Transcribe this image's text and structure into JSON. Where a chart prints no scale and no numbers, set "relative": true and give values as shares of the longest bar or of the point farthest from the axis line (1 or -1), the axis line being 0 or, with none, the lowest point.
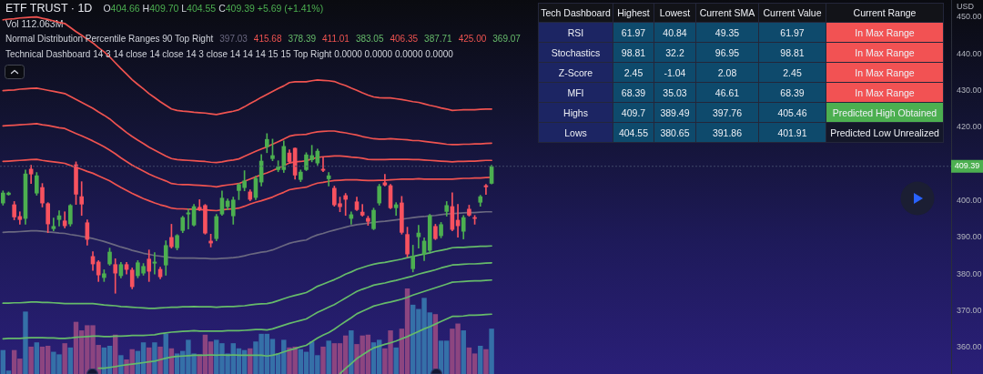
{
  "chart_data": [
    {
      "type": "candlestick",
      "title": "ETF TRUST · 1D",
      "ylabel": "USD",
      "categories": [
        null,
        null,
        null,
        null,
        null,
        null,
        null,
        null,
        null,
        null,
        null,
        null,
        null,
        null,
        null,
        null,
        null,
        null,
        null,
        null,
        null,
        null,
        null,
        null,
        null,
        null,
        null,
        null,
        null,
        null,
        null,
        null,
        null,
        null,
        null,
        null,
        null,
        null,
        null,
        null,
        null,
        null,
        null,
        null,
        null,
        null,
        null,
        null,
        null,
        null,
        null,
        null,
        null,
        null,
        null,
        null,
        null,
        null,
        null,
        null,
        null,
        null,
        null,
        null,
        null,
        null,
        null,
        null,
        null,
        null,
        null,
        null,
        null,
        null,
        null,
        null,
        null,
        null,
        null,
        null,
        null,
        null,
        null,
        null,
        null,
        null,
        null,
        null
      ],
      "ohlc": [
        [
          399.3,
          402.7,
          398.8,
          402.2
        ],
        [
          401.6,
          402.4,
          401.5,
          402.2
        ],
        [
          399.0,
          399.8,
          394.8,
          395.5
        ],
        [
          395.8,
          397.0,
          393.6,
          394.8
        ],
        [
          395.1,
          408.4,
          393.6,
          407.4
        ],
        [
          408.7,
          409.7,
          404.7,
          407.2
        ],
        [
          402.0,
          407.7,
          401.5,
          406.9
        ],
        [
          403.7,
          404.7,
          398.3,
          399.3
        ],
        [
          399.3,
          399.5,
          391.3,
          393.6
        ],
        [
          392.3,
          395.3,
          391.8,
          393.1
        ],
        [
          394.8,
          397.3,
          393.1,
          396.0
        ],
        [
          394.6,
          397.0,
          392.6,
          393.1
        ],
        [
          393.6,
          399.0,
          393.1,
          398.8
        ],
        [
          409.9,
          410.6,
          399.0,
          401.7
        ],
        [
          401.2,
          405.2,
          396.0,
          399.0
        ],
        [
          394.1,
          394.8,
          387.9,
          389.4
        ],
        [
          384.9,
          386.1,
          381.0,
          382.7
        ],
        [
          383.4,
          383.7,
          378.0,
          379.7
        ],
        [
          379.0,
          381.2,
          378.0,
          380.2
        ],
        [
          382.7,
          387.1,
          382.4,
          386.1
        ],
        [
          382.7,
          384.2,
          374.8,
          380.2
        ],
        [
          379.5,
          383.2,
          379.0,
          382.7
        ],
        [
          382.7,
          383.2,
          380.0,
          381.2
        ],
        [
          381.2,
          381.7,
          376.0,
          376.5
        ],
        [
          379.5,
          383.7,
          379.0,
          383.2
        ],
        [
          380.2,
          382.9,
          379.7,
          382.2
        ],
        [
          384.2,
          386.6,
          378.0,
          380.7
        ],
        [
          382.9,
          385.9,
          380.0,
          383.4
        ],
        [
          381.4,
          381.9,
          378.7,
          379.2
        ],
        [
          382.4,
          389.1,
          379.7,
          387.9
        ],
        [
          390.1,
          393.6,
          387.1,
          387.4
        ],
        [
          387.1,
          390.8,
          386.6,
          390.6
        ],
        [
          391.8,
          395.8,
          391.3,
          395.5
        ],
        [
          396.3,
          397.8,
          392.3,
          396.8
        ],
        [
          393.3,
          399.0,
          393.1,
          398.5
        ],
        [
          398.3,
          400.3,
          397.3,
          397.5
        ],
        [
          398.8,
          399.0,
          390.9,
          391.1
        ],
        [
          389.1,
          390.9,
          387.4,
          388.4
        ],
        [
          389.6,
          396.3,
          389.1,
          395.8
        ],
        [
          396.3,
          402.7,
          396.0,
          400.8
        ],
        [
          398.3,
          400.5,
          397.5,
          400.0
        ],
        [
          395.8,
          401.0,
          393.6,
          400.3
        ],
        [
          402.7,
          404.7,
          400.3,
          404.5
        ],
        [
          403.5,
          408.2,
          402.7,
          405.5
        ],
        [
          402.5,
          403.0,
          400.0,
          400.3
        ],
        [
          400.8,
          406.7,
          400.3,
          406.2
        ],
        [
          405.0,
          412.6,
          404.0,
          410.9
        ],
        [
          414.6,
          418.3,
          413.1,
          416.8
        ],
        [
          411.4,
          416.8,
          410.9,
          412.4
        ],
        [
          408.4,
          410.9,
          407.9,
          409.4
        ],
        [
          408.4,
          416.3,
          407.7,
          414.9
        ],
        [
          413.1,
          413.9,
          410.2,
          410.6
        ],
        [
          414.4,
          414.4,
          405.9,
          406.9
        ],
        [
          405.7,
          408.4,
          405.2,
          407.9
        ],
        [
          408.4,
          413.1,
          408.2,
          412.6
        ],
        [
          411.1,
          415.1,
          410.6,
          412.4
        ],
        [
          410.2,
          414.1,
          409.7,
          413.6
        ],
        [
          408.7,
          411.9,
          407.9,
          408.2
        ],
        [
          405.9,
          407.7,
          404.0,
          406.9
        ],
        [
          403.5,
          404.0,
          398.5,
          398.8
        ],
        [
          399.3,
          401.0,
          397.0,
          398.3
        ],
        [
          401.5,
          402.0,
          396.0,
          400.3
        ],
        [
          395.1,
          397.0,
          393.6,
          396.3
        ],
        [
          399.8,
          401.0,
          397.3,
          397.5
        ],
        [
          397.0,
          399.0,
          395.8,
          396.0
        ],
        [
          395.3,
          395.8,
          393.3,
          394.3
        ],
        [
          392.3,
          398.0,
          392.1,
          397.5
        ],
        [
          399.3,
          404.5,
          398.8,
          404.0
        ],
        [
          405.0,
          407.2,
          404.0,
          404.2
        ],
        [
          404.2,
          404.5,
          397.8,
          398.0
        ],
        [
          398.0,
          399.5,
          396.0,
          399.0
        ],
        [
          399.5,
          401.2,
          390.9,
          391.3
        ],
        [
          390.9,
          392.8,
          384.7,
          385.4
        ],
        [
          381.4,
          387.9,
          380.6,
          384.9
        ],
        [
          390.1,
          393.3,
          387.1,
          391.3
        ],
        [
          385.4,
          389.9,
          383.7,
          389.1
        ],
        [
          386.4,
          396.3,
          386.1,
          396.0
        ],
        [
          393.1,
          393.6,
          389.4,
          389.6
        ],
        [
          390.4,
          394.1,
          389.9,
          393.6
        ],
        [
          397.0,
          399.8,
          395.8,
          398.8
        ],
        [
          398.5,
          402.2,
          391.8,
          392.1
        ],
        [
          394.8,
          399.0,
          390.1,
          393.1
        ],
        [
          391.6,
          396.0,
          389.6,
          395.5
        ],
        [
          397.8,
          398.8,
          395.8,
          396.0
        ],
        [
          395.5,
          396.0,
          393.6,
          395.1
        ],
        [
          399.5,
          401.5,
          398.5,
          401.2
        ],
        [
          404.2,
          404.5,
          401.7,
          403.7
        ],
        [
          404.66,
          409.7,
          404.55,
          409.39
        ]
      ],
      "colors": [
        "#4caf50",
        "#4caf50",
        "#f7525f",
        "#f7525f",
        "#4caf50",
        "#f7525f",
        "#4caf50",
        "#f7525f",
        "#f7525f",
        "#4caf50",
        "#4caf50",
        "#f7525f",
        "#4caf50",
        "#f7525f",
        "#f7525f",
        "#f7525f",
        "#f7525f",
        "#f7525f",
        "#4caf50",
        "#4caf50",
        "#f7525f",
        "#4caf50",
        "#f7525f",
        "#f7525f",
        "#4caf50",
        "#4caf50",
        "#f7525f",
        "#4caf50",
        "#f7525f",
        "#4caf50",
        "#f7525f",
        "#4caf50",
        "#4caf50",
        "#4caf50",
        "#4caf50",
        "#f7525f",
        "#f7525f",
        "#f7525f",
        "#4caf50",
        "#4caf50",
        "#4caf50",
        "#4caf50",
        "#4caf50",
        "#4caf50",
        "#f7525f",
        "#4caf50",
        "#4caf50",
        "#4caf50",
        "#4caf50",
        "#4caf50",
        "#4caf50",
        "#f7525f",
        "#f7525f",
        "#4caf50",
        "#4caf50",
        "#4caf50",
        "#4caf50",
        "#f7525f",
        "#4caf50",
        "#f7525f",
        "#f7525f",
        "#f7525f",
        "#4caf50",
        "#f7525f",
        "#f7525f",
        "#f7525f",
        "#4caf50",
        "#4caf50",
        "#f7525f",
        "#f7525f",
        "#4caf50",
        "#f7525f",
        "#f7525f",
        "#4caf50",
        "#4caf50",
        "#4caf50",
        "#4caf50",
        "#f7525f",
        "#4caf50",
        "#4caf50",
        "#f7525f",
        "#f7525f",
        "#4caf50",
        "#f7525f",
        "#f7525f",
        "#4caf50",
        "#f7525f",
        "#4caf50"
      ],
      "series": [
        {
          "type": "line",
          "color": "#6a6880",
          "values": [
            391.4,
            391.5,
            391.5,
            391.6,
            391.7,
            391.8,
            391.8,
            391.7,
            391.5,
            391.4,
            391.2,
            391.1,
            390.8,
            390.6,
            390.3,
            390.0,
            389.7,
            389.3,
            388.9,
            388.4,
            387.9,
            387.4,
            387.0,
            386.5,
            386.1,
            385.7,
            385.4,
            385.1,
            384.9,
            384.7,
            384.5,
            384.4,
            384.4,
            384.4,
            384.4,
            384.3,
            384.3,
            384.2,
            384.2,
            384.3,
            384.4,
            384.5,
            384.7,
            385.0,
            385.4,
            385.7,
            386.0,
            386.2,
            386.6,
            387.2,
            387.8,
            388.4,
            388.8,
            389.1,
            389.3,
            390.1,
            390.7,
            391.1,
            391.6,
            392.0,
            392.4,
            392.8,
            393.2,
            393.5,
            393.7,
            393.9,
            394.1,
            394.3,
            394.4,
            394.6,
            394.8,
            395.0,
            395.2,
            395.4,
            395.6,
            395.7,
            395.9,
            396.0,
            396.2,
            396.4,
            396.5,
            396.6,
            396.7,
            396.8,
            396.8,
            396.9,
            397.0,
            397.0
          ]
        },
        {
          "type": "line",
          "color": "#ef5350",
          "values": [
            430.0,
            430.1,
            430.2,
            430.4,
            430.5,
            430.6,
            430.7,
            430.4,
            430.1,
            429.8,
            429.5,
            429.2,
            428.4,
            427.6,
            426.8,
            426.0,
            425.2,
            424.2,
            423.3,
            422.3,
            421.0,
            419.8,
            418.6,
            417.5,
            416.5,
            415.6,
            414.6,
            413.8,
            413.0,
            412.2,
            411.5,
            411.2,
            411.1,
            411.0,
            410.9,
            410.8,
            410.7,
            410.5,
            410.4,
            410.6,
            410.9,
            411.1,
            411.4,
            412.1,
            412.8,
            413.5,
            414.1,
            414.7,
            415.4,
            416.1,
            416.8,
            417.6,
            417.9,
            418.0,
            418.1,
            418.5,
            418.8,
            418.9,
            419.0,
            419.0,
            418.7,
            418.5,
            418.2,
            417.9,
            417.5,
            417.2,
            416.9,
            416.8,
            416.8,
            416.9,
            416.8,
            416.7,
            416.6,
            416.4,
            416.4,
            416.2,
            416.0,
            415.8,
            415.6,
            415.4,
            415.3,
            415.3,
            415.4,
            415.4,
            415.5,
            415.5,
            415.6,
            415.7
          ]
        },
        {
          "type": "line",
          "color": "#66bb6a",
          "values": [
            null,
            null,
            null,
            null,
            null,
            null,
            null,
            null,
            null,
            null,
            null,
            null,
            null,
            null,
            null,
            null,
            null,
            354.4,
            354.4,
            354.6,
            354.8,
            355.1,
            355.3,
            355.5,
            355.7,
            355.9,
            356.1,
            356.3,
            356.7,
            357.1,
            357.4,
            357.6,
            357.7,
            357.8,
            357.9,
            357.9,
            357.9,
            358.0,
            357.9,
            358.0,
            357.9,
            358.0,
            357.9,
            357.9,
            357.9,
            357.9,
            357.9,
            357.7,
            357.9,
            358.3,
            358.8,
            359.3,
            359.7,
            360.2,
            360.6,
            361.6,
            362.6,
            363.4,
            364.1,
            365.0,
            366.1,
            367.1,
            368.1,
            369.2,
            369.9,
            370.6,
            371.3,
            371.7,
            372.1,
            372.4,
            372.8,
            373.2,
            373.7,
            374.3,
            374.8,
            375.3,
            375.8,
            376.3,
            376.8,
            377.3,
            377.8,
            377.9,
            378.0,
            378.1,
            378.2,
            378.2,
            378.3,
            378.4
          ]
        },
        {
          "type": "line",
          "color": "#ef5350",
          "values": [
            420.4,
            420.5,
            420.6,
            420.7,
            420.8,
            420.9,
            421.0,
            420.7,
            420.5,
            420.2,
            419.9,
            419.7,
            419.0,
            418.3,
            417.7,
            417.0,
            416.3,
            415.5,
            414.7,
            413.8,
            412.8,
            411.7,
            410.7,
            409.7,
            408.9,
            408.1,
            407.3,
            406.6,
            406.0,
            405.4,
            404.7,
            404.5,
            404.4,
            404.4,
            404.3,
            404.2,
            404.1,
            404.0,
            403.8,
            404.1,
            404.3,
            404.5,
            404.7,
            405.3,
            405.9,
            406.5,
            407.1,
            407.6,
            408.2,
            408.9,
            409.6,
            410.3,
            410.6,
            410.7,
            410.9,
            411.4,
            411.8,
            412.0,
            412.1,
            412.2,
            412.2,
            412.1,
            411.9,
            411.8,
            411.6,
            411.3,
            411.2,
            411.2,
            411.2,
            411.3,
            411.3,
            411.3,
            411.3,
            411.2,
            411.2,
            411.1,
            411.0,
            410.9,
            410.8,
            410.7,
            410.6,
            410.7,
            410.7,
            410.8,
            410.8,
            410.9,
            411.0,
            411.0
          ]
        },
        {
          "type": "line",
          "color": "#66bb6a",
          "values": [
            362.4,
            362.5,
            362.5,
            362.5,
            362.6,
            362.7,
            362.7,
            362.7,
            362.6,
            362.6,
            362.5,
            362.5,
            362.6,
            362.8,
            362.9,
            363.0,
            363.1,
            363.1,
            363.0,
            363.0,
            363.1,
            363.1,
            363.2,
            363.3,
            363.3,
            363.3,
            363.4,
            363.5,
            363.8,
            364.0,
            364.2,
            364.3,
            364.4,
            364.5,
            364.6,
            364.5,
            364.5,
            364.5,
            364.5,
            364.5,
            364.6,
            364.6,
            364.6,
            364.7,
            364.8,
            364.9,
            364.9,
            364.8,
            365.1,
            365.6,
            366.1,
            366.6,
            367.0,
            367.4,
            367.8,
            368.7,
            369.6,
            370.3,
            371.0,
            371.7,
            372.6,
            373.5,
            374.4,
            375.3,
            375.9,
            376.4,
            377.0,
            377.3,
            377.6,
            378.0,
            378.3,
            378.7,
            379.1,
            379.5,
            380.0,
            380.4,
            380.8,
            381.2,
            381.7,
            382.1,
            382.5,
            382.6,
            382.7,
            382.8,
            382.8,
            382.9,
            383.0,
            383.1
          ]
        },
        {
          "type": "line",
          "color": "#ef5350",
          "values": [
            410.7,
            410.8,
            410.9,
            411.0,
            411.1,
            411.2,
            411.3,
            411.0,
            410.8,
            410.6,
            410.4,
            410.2,
            409.6,
            409.1,
            408.6,
            408.0,
            407.5,
            406.8,
            406.1,
            405.4,
            404.5,
            403.6,
            402.8,
            402.0,
            401.3,
            400.6,
            400.0,
            399.4,
            398.9,
            398.5,
            398.0,
            397.8,
            397.8,
            397.7,
            397.7,
            397.6,
            397.5,
            397.4,
            397.3,
            397.5,
            397.7,
            397.8,
            398.0,
            398.5,
            399.1,
            399.6,
            400.0,
            400.5,
            401.0,
            401.7,
            402.3,
            403.0,
            403.3,
            403.5,
            403.7,
            404.3,
            404.8,
            405.0,
            405.3,
            405.5,
            405.6,
            405.7,
            405.7,
            405.7,
            405.6,
            405.5,
            405.5,
            405.6,
            405.6,
            405.7,
            405.8,
            405.9,
            405.9,
            405.9,
            406.0,
            405.9,
            405.9,
            405.9,
            405.9,
            405.9,
            405.9,
            406.0,
            406.1,
            406.1,
            406.2,
            406.2,
            406.3,
            406.4
          ]
        },
        {
          "type": "line",
          "color": "#66bb6a",
          "values": [
            372.1,
            372.1,
            372.2,
            372.2,
            372.3,
            372.4,
            372.4,
            372.3,
            372.3,
            372.2,
            372.1,
            372.0,
            372.0,
            372.0,
            372.0,
            372.0,
            372.0,
            371.8,
            371.6,
            371.5,
            371.4,
            371.2,
            371.1,
            371.0,
            370.9,
            370.8,
            370.7,
            370.7,
            370.8,
            370.9,
            371.0,
            371.0,
            371.1,
            371.1,
            371.2,
            371.1,
            371.1,
            371.1,
            371.0,
            371.1,
            371.2,
            371.2,
            371.3,
            371.4,
            371.6,
            371.8,
            371.9,
            372.0,
            372.3,
            372.8,
            373.3,
            373.8,
            374.2,
            374.6,
            375.0,
            375.8,
            376.7,
            377.3,
            377.9,
            378.5,
            379.2,
            380.0,
            380.6,
            381.3,
            381.8,
            382.3,
            382.7,
            383.0,
            383.2,
            383.5,
            383.8,
            384.1,
            384.5,
            384.8,
            385.2,
            385.5,
            385.8,
            386.2,
            386.5,
            386.8,
            387.2,
            387.3,
            387.3,
            387.4,
            387.5,
            387.6,
            387.6,
            387.7
          ]
        },
        {
          "type": "line",
          "color": "#ef5350",
          "values": [
            449.3,
            449.5,
            449.6,
            449.8,
            449.9,
            450.0,
            450.1,
            449.7,
            449.4,
            449.0,
            448.6,
            448.3,
            447.2,
            446.1,
            445.1,
            444.0,
            443.0,
            441.7,
            440.6,
            439.2,
            437.6,
            436.0,
            434.5,
            433.0,
            431.7,
            430.5,
            429.2,
            428.1,
            427.0,
            426.0,
            425.0,
            424.6,
            424.4,
            424.3,
            424.1,
            424.0,
            423.9,
            423.7,
            423.5,
            423.8,
            424.1,
            424.4,
            424.8,
            425.6,
            426.5,
            427.3,
            428.2,
            429.0,
            429.8,
            430.6,
            431.3,
            432.2,
            432.4,
            432.4,
            432.4,
            432.7,
            432.9,
            432.8,
            432.7,
            432.5,
            431.9,
            431.4,
            430.7,
            430.1,
            429.4,
            428.8,
            428.3,
            428.1,
            428.0,
            428.0,
            427.8,
            427.6,
            427.3,
            427.0,
            426.8,
            426.4,
            426.0,
            425.7,
            425.3,
            425.0,
            424.6,
            424.7,
            424.8,
            424.8,
            424.8,
            424.9,
            425.0,
            425.0
          ]
        },
        {
          "type": "line",
          "color": "#66bb6a",
          "values": [
            null,
            null,
            null,
            null,
            null,
            null,
            null,
            null,
            null,
            null,
            null,
            null,
            null,
            null,
            null,
            null,
            null,
            null,
            null,
            null,
            null,
            null,
            null,
            null,
            null,
            null,
            null,
            null,
            null,
            null,
            null,
            null,
            null,
            null,
            null,
            null,
            null,
            null,
            null,
            null,
            null,
            null,
            null,
            null,
            null,
            null,
            null,
            null,
            null,
            null,
            null,
            null,
            null,
            null,
            null,
            null,
            null,
            null,
            null,
            null,
            352.9,
            354.3,
            355.6,
            357.0,
            358.0,
            359.0,
            359.9,
            360.4,
            360.9,
            361.3,
            361.8,
            362.4,
            363.0,
            363.7,
            364.4,
            365.1,
            365.7,
            366.4,
            367.1,
            367.8,
            368.5,
            368.5,
            368.6,
            368.8,
            368.8,
            368.9,
            369.0,
            369.1
          ]
        }
      ],
      "ylim": [
        352.8,
        454.7
      ],
      "yticks": [
        {
          "value": 360,
          "label": "360.00"
        },
        {
          "value": 370,
          "label": "370.00"
        },
        {
          "value": 380,
          "label": "380.00"
        },
        {
          "value": 390,
          "label": "390.00"
        },
        {
          "value": 400,
          "label": "400.00"
        },
        {
          "value": 420,
          "label": "420.00"
        },
        {
          "value": 430,
          "label": "430.00"
        },
        {
          "value": 440,
          "label": "440.00"
        },
        {
          "value": 450,
          "label": "450.00"
        }
      ],
      "ref_lines": [
        {
          "axis": "y",
          "value": 409.39,
          "label": "409.39",
          "color": "#414868",
          "line_style": "dotted"
        }
      ],
      "annotations": [
        "O404.66 H409.70 L404.55 C409.39 +5.69 (+1.41%)",
        "Normal Distribution Percentile Ranges 90 Top Right",
        "397.03",
        "415.68",
        "378.39",
        "411.01",
        "383.05",
        "406.35",
        "387.71",
        "425.00",
        "369.07",
        "Technical Dashboard 14 3 14 close 14 close 14 3 close 14 14 14 15 15 Top Right 0.0000 0.0000 0.0000 0.0000"
      ]
    },
    {
      "type": "bar",
      "relative": true,
      "categories": [
        null,
        null,
        null,
        null,
        null,
        null,
        null,
        null,
        null,
        null,
        null,
        null,
        null,
        null,
        null,
        null,
        null,
        null,
        null,
        null,
        null,
        null,
        null,
        null,
        null,
        null,
        null,
        null,
        null,
        null,
        null,
        null,
        null,
        null,
        null,
        null,
        null,
        null,
        null,
        null,
        null,
        null,
        null,
        null,
        null,
        null,
        null,
        null,
        null,
        null,
        null,
        null,
        null,
        null,
        null,
        null,
        null,
        null,
        null,
        null,
        null,
        null,
        null,
        null,
        null,
        null,
        null,
        null,
        null,
        null,
        null,
        null,
        null,
        null,
        null,
        null,
        null,
        null,
        null,
        null,
        null,
        null,
        null,
        null,
        null,
        null,
        null,
        null
      ],
      "values": [
        0.28,
        0.04,
        0.28,
        0.18,
        0.73,
        0.32,
        0.37,
        0.32,
        0.33,
        0.26,
        0.23,
        0.36,
        0.31,
        0.61,
        0.51,
        0.57,
        0.57,
        0.34,
        0.31,
        0.33,
        0.46,
        0.22,
        0.17,
        0.29,
        0.27,
        0.37,
        0.31,
        0.37,
        0.32,
        0.47,
        0.3,
        0.24,
        0.27,
        0.4,
        0.24,
        0.23,
        0.46,
        0.38,
        0.4,
        0.36,
        0.24,
        0.36,
        0.3,
        0.28,
        0.3,
        0.38,
        0.47,
        0.47,
        0.41,
        0.24,
        0.4,
        0.31,
        0.32,
        0.29,
        0.26,
        0.38,
        0.22,
        0.32,
        0.39,
        0.36,
        0.36,
        0.45,
        0.51,
        0.35,
        0.45,
        0.46,
        0.37,
        0.4,
        0.3,
        0.51,
        0.31,
        0.53,
        1,
        0.81,
        0.76,
        0.89,
        0.72,
        0.7,
        0.39,
        0.39,
        0.53,
        0.59,
        0.51,
        0.31,
        0.24,
        0.33,
        0.29,
        0.53
      ],
      "colors": [
        "#3570a8",
        "#3570a8",
        "#8c4580",
        "#8c4580",
        "#3570a8",
        "#8c4580",
        "#3570a8",
        "#8c4580",
        "#8c4580",
        "#3570a8",
        "#3570a8",
        "#8c4580",
        "#3570a8",
        "#8c4580",
        "#8c4580",
        "#8c4580",
        "#8c4580",
        "#8c4580",
        "#3570a8",
        "#3570a8",
        "#8c4580",
        "#3570a8",
        "#8c4580",
        "#8c4580",
        "#3570a8",
        "#3570a8",
        "#8c4580",
        "#3570a8",
        "#8c4580",
        "#3570a8",
        "#8c4580",
        "#3570a8",
        "#3570a8",
        "#3570a8",
        "#3570a8",
        "#8c4580",
        "#8c4580",
        "#8c4580",
        "#3570a8",
        "#3570a8",
        "#3570a8",
        "#3570a8",
        "#3570a8",
        "#3570a8",
        "#8c4580",
        "#3570a8",
        "#3570a8",
        "#3570a8",
        "#3570a8",
        "#3570a8",
        "#3570a8",
        "#8c4580",
        "#8c4580",
        "#3570a8",
        "#3570a8",
        "#3570a8",
        "#3570a8",
        "#8c4580",
        "#3570a8",
        "#8c4580",
        "#8c4580",
        "#8c4580",
        "#3570a8",
        "#8c4580",
        "#8c4580",
        "#8c4580",
        "#3570a8",
        "#3570a8",
        "#8c4580",
        "#8c4580",
        "#3570a8",
        "#8c4580",
        "#8c4580",
        "#3570a8",
        "#3570a8",
        "#3570a8",
        "#3570a8",
        "#8c4580",
        "#3570a8",
        "#3570a8",
        "#8c4580",
        "#8c4580",
        "#3570a8",
        "#8c4580",
        "#8c4580",
        "#3570a8",
        "#8c4580",
        "#3570a8"
      ],
      "annotations": [
        "Vol 112.063M"
      ]
    },
    {
      "type": "other",
      "title": "Tech Dashboard",
      "categories": [
        "Highest",
        "Lowest",
        "Current SMA",
        "Current Value"
      ],
      "y_categories": [
        "RSI",
        "Stochastics",
        "Z-Score",
        "MFI",
        "Highs",
        "Lows"
      ],
      "cell_labels": [
        [
          "61.97",
          "40.84",
          "49.35",
          "61.97"
        ],
        [
          "98.81",
          "32.2",
          "96.95",
          "98.81"
        ],
        [
          "2.45",
          "-1.04",
          "2.08",
          "2.45"
        ],
        [
          "68.39",
          "35.03",
          "46.61",
          "68.39"
        ],
        [
          "409.7",
          "389.49",
          "397.76",
          "405.46"
        ],
        [
          "404.55",
          "380.65",
          "391.86",
          "401.91"
        ]
      ]
    },
    {
      "type": "other",
      "title": "Current Range",
      "categories": [
        "In Max Range",
        "In Max Range",
        "In Max Range",
        "In Max Range",
        "Predicted High Obtained",
        "Predicted Low Unrealized"
      ],
      "colors": [
        "#f25253",
        "#f25253",
        "#f25253",
        "#f25253",
        "#4caf50",
        "#141729"
      ]
    }
  ]
}
